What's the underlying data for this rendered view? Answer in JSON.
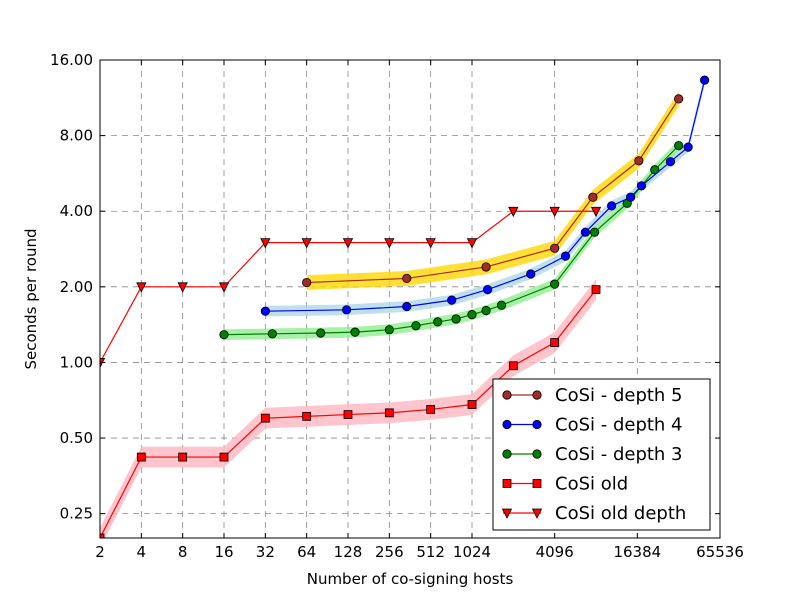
{
  "chart_data": {
    "type": "line",
    "xlabel": "Number of co-signing hosts",
    "ylabel": "Seconds per round",
    "x_scale": "log2",
    "y_scale": "log2",
    "xlim": [
      2,
      65536
    ],
    "ylim": [
      0.2,
      16
    ],
    "x_ticks": [
      2,
      4,
      8,
      16,
      32,
      64,
      128,
      256,
      512,
      1024,
      4096,
      16384,
      65536
    ],
    "x_tick_labels": [
      "2",
      "4",
      "8",
      "16",
      "32",
      "64",
      "128",
      "256",
      "512",
      "1024",
      "4096",
      "16384",
      "65536"
    ],
    "y_ticks": [
      0.25,
      0.5,
      1,
      2,
      4,
      8,
      16
    ],
    "y_tick_labels": [
      "0.25",
      "0.50",
      "1.00",
      "2.00",
      "4.00",
      "8.00",
      "16.00"
    ],
    "grid": true,
    "legend_position": "bottom-right",
    "series": [
      {
        "name": "CoSi - depth 5",
        "color": "#a52a2a",
        "marker": "circle",
        "x": [
          64,
          343,
          1296,
          4096,
          7776,
          16807,
          32768
        ],
        "y": [
          2.08,
          2.16,
          2.4,
          2.85,
          4.55,
          6.35,
          11.2
        ]
      },
      {
        "name": "CoSi - depth 4",
        "color": "#0000ff",
        "marker": "circle",
        "x": [
          32,
          125,
          343,
          729,
          1331,
          2744,
          4913,
          6859,
          10648,
          14641,
          17576,
          28561,
          38416,
          50625
        ],
        "y": [
          1.6,
          1.62,
          1.67,
          1.77,
          1.95,
          2.25,
          2.65,
          3.3,
          4.2,
          4.55,
          5.05,
          6.3,
          7.2,
          13.3
        ]
      },
      {
        "name": "CoSi - depth 3",
        "color": "#008000",
        "marker": "circle",
        "x": [
          16,
          36,
          81,
          144,
          256,
          400,
          576,
          784,
          1024,
          1296,
          1681,
          4096,
          8000,
          13824,
          21952,
          32768
        ],
        "y": [
          1.29,
          1.3,
          1.31,
          1.32,
          1.35,
          1.4,
          1.45,
          1.49,
          1.55,
          1.61,
          1.69,
          2.05,
          3.3,
          4.3,
          5.85,
          7.3
        ]
      },
      {
        "name": "CoSi old",
        "color": "#ff0000",
        "marker": "square",
        "x": [
          2,
          4,
          8,
          16,
          32,
          64,
          128,
          256,
          512,
          1024,
          2048,
          4096,
          8192
        ],
        "y": [
          0.2,
          0.42,
          0.42,
          0.42,
          0.6,
          0.61,
          0.62,
          0.63,
          0.65,
          0.68,
          0.97,
          1.2,
          1.95
        ]
      },
      {
        "name": "CoSi old depth",
        "color": "#ff0000",
        "marker": "triangle-down",
        "x": [
          2,
          4,
          8,
          16,
          32,
          64,
          128,
          256,
          512,
          1024,
          2048,
          4096,
          8192
        ],
        "y": [
          1.0,
          2.0,
          2.0,
          2.0,
          3.0,
          3.0,
          3.0,
          3.0,
          3.0,
          3.0,
          4.0,
          4.0,
          4.0
        ]
      }
    ]
  }
}
